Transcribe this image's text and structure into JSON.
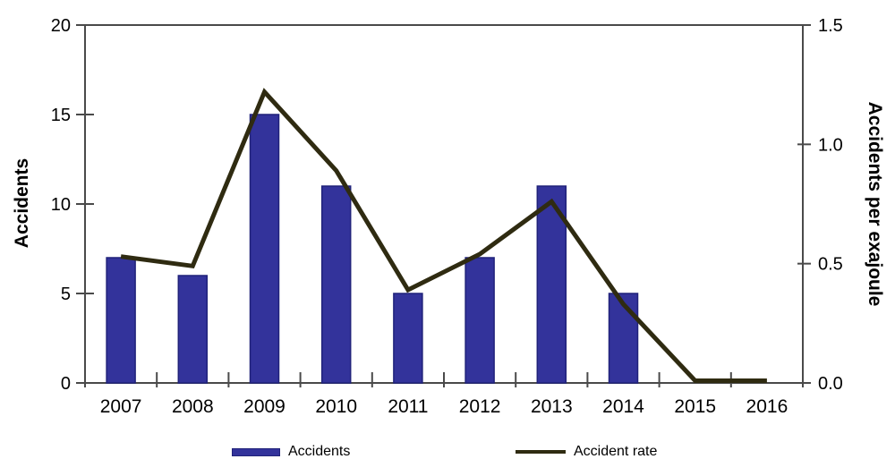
{
  "chart_data": {
    "type": "bar",
    "subtype": "dual-axis bar + line combo",
    "categories": [
      "2007",
      "2008",
      "2009",
      "2010",
      "2011",
      "2012",
      "2013",
      "2014",
      "2015",
      "2016"
    ],
    "series": [
      {
        "name": "Accidents",
        "type": "bar",
        "axis": "left",
        "values": [
          7,
          6,
          15,
          11,
          5,
          7,
          11,
          5,
          0,
          0
        ],
        "color": "#33339B",
        "border_color": "#20227A"
      },
      {
        "name": "Accident rate",
        "type": "line",
        "axis": "right",
        "values": [
          0.53,
          0.49,
          1.22,
          0.89,
          0.39,
          0.54,
          0.76,
          0.33,
          0,
          0
        ],
        "color": "#2F2B11"
      }
    ],
    "left_axis": {
      "label": "Accidents",
      "min": 0,
      "max": 20,
      "ticks": [
        0,
        5,
        10,
        15,
        20
      ]
    },
    "right_axis": {
      "label": "Accidents per exajoule",
      "min": 0,
      "max": 1.5,
      "tick_values": [
        0,
        0.5,
        1,
        1.5
      ],
      "tick_labels": [
        "0.0",
        "0.5",
        "1.0",
        "1.5"
      ]
    },
    "title": "",
    "xlabel": "",
    "grid": false,
    "legend_position": "bottom",
    "legend": [
      {
        "label": "Accidents",
        "swatch": "bar"
      },
      {
        "label": "Accident rate",
        "swatch": "line"
      }
    ],
    "colors": {
      "frame": "#4A4A4A",
      "text": "#000000",
      "background": "#FFFFFF"
    }
  }
}
